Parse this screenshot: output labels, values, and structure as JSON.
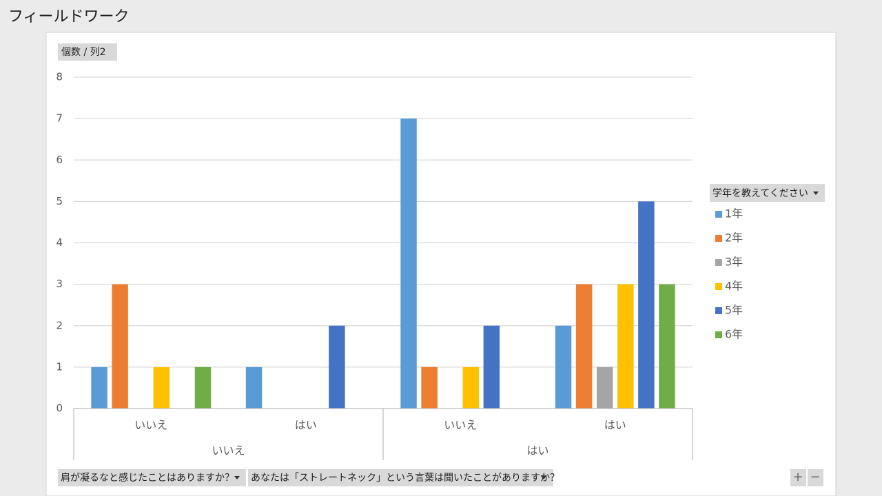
{
  "ui": {
    "page_title": "フィールドワーク",
    "value_field": "個数 / 列2",
    "legend_field": "学年を教えてください",
    "axis_fields": [
      "肩が凝るなと感じたことはありますか？",
      "あなたは「ストレートネック」という言葉は聞いたことがありますか？"
    ],
    "zoom_buttons": [
      "+",
      "−"
    ]
  },
  "chart_data": {
    "type": "bar",
    "categories": [
      "いいえ",
      "はい",
      "いいえ",
      "はい"
    ],
    "outer_categories": [
      "いいえ",
      "はい"
    ],
    "series": [
      {
        "name": "1年",
        "color": "#5b9bd5",
        "values": [
          1,
          1,
          7,
          2
        ]
      },
      {
        "name": "2年",
        "color": "#ed7d31",
        "values": [
          3,
          null,
          1,
          3
        ]
      },
      {
        "name": "3年",
        "color": "#a5a5a5",
        "values": [
          null,
          null,
          null,
          1
        ]
      },
      {
        "name": "4年",
        "color": "#ffc000",
        "values": [
          1,
          null,
          1,
          3
        ]
      },
      {
        "name": "5年",
        "color": "#4472c4",
        "values": [
          null,
          2,
          2,
          5
        ]
      },
      {
        "name": "6年",
        "color": "#70ad47",
        "values": [
          1,
          null,
          null,
          3
        ]
      }
    ],
    "ylim": [
      0,
      8
    ],
    "yticks": [
      0,
      1,
      2,
      3,
      4,
      5,
      6,
      7,
      8
    ],
    "grid": true,
    "legend": "right"
  }
}
